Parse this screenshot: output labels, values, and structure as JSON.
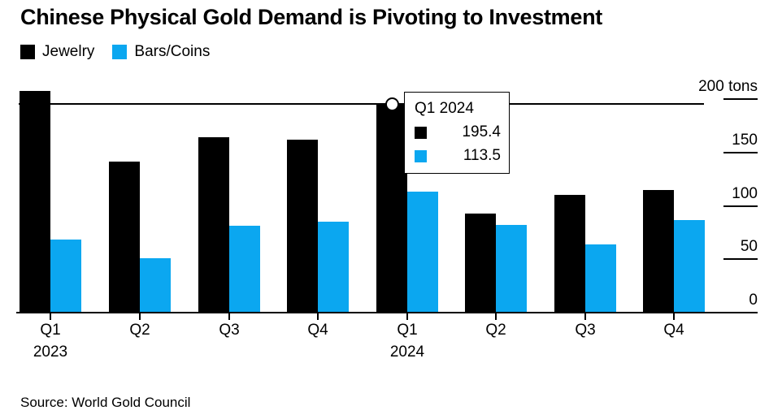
{
  "source": "Source: World Gold Council",
  "colors": {
    "background": "#ffffff",
    "text": "#000000",
    "axis": "#000000",
    "jewelry": "#000000",
    "bars_coins": "#0ba7f0"
  },
  "chart_data": {
    "type": "bar",
    "title": "Chinese Physical Gold Demand is Pivoting to Investment",
    "unit": "tons",
    "categories": [
      "Q1 2023",
      "Q2 2023",
      "Q3 2023",
      "Q4 2023",
      "Q1 2024",
      "Q2 2024",
      "Q3 2024",
      "Q4 2024"
    ],
    "x_ticks": [
      {
        "label": "Q1",
        "sub": "2023"
      },
      {
        "label": "Q2",
        "sub": ""
      },
      {
        "label": "Q3",
        "sub": ""
      },
      {
        "label": "Q4",
        "sub": ""
      },
      {
        "label": "Q1",
        "sub": "2024"
      },
      {
        "label": "Q2",
        "sub": ""
      },
      {
        "label": "Q3",
        "sub": ""
      },
      {
        "label": "Q4",
        "sub": ""
      }
    ],
    "series": [
      {
        "name": "Jewelry",
        "color": "#000000",
        "values": [
          207.8,
          141.4,
          164.5,
          162.2,
          195.4,
          92.8,
          109.9,
          115.2
        ]
      },
      {
        "name": "Bars/Coins",
        "color": "#0ba7f0",
        "values": [
          68.4,
          51.2,
          81.6,
          84.9,
          113.5,
          82.1,
          63.9,
          86.9
        ]
      }
    ],
    "ylim": [
      0,
      200
    ],
    "yticks": [
      0,
      50,
      100,
      150,
      200
    ],
    "ytick_labels": [
      "0",
      "50",
      "100",
      "150",
      "200 tons"
    ],
    "legend_position": "top-left",
    "axis_side": "right",
    "grid": false
  },
  "tooltip": {
    "title": "Q1 2024",
    "category_index": 4,
    "rows": [
      {
        "series": "Jewelry",
        "value": "195.4"
      },
      {
        "series": "Bars/Coins",
        "value": "113.5"
      }
    ]
  },
  "hover_marker": {
    "category": "Q1 2024",
    "series": "Jewelry",
    "value": 195.4
  }
}
